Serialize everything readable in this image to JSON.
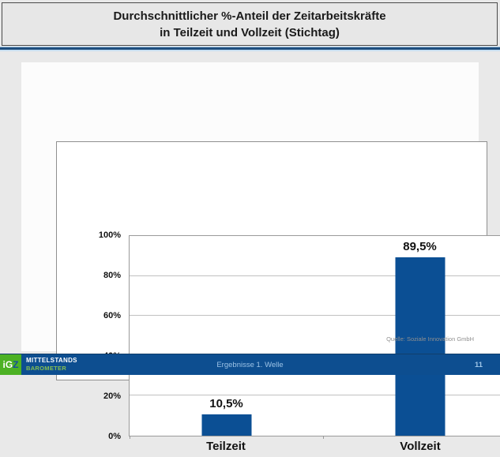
{
  "header": {
    "title_line1": "Durchschnittlicher %-Anteil der Zeitarbeitskräfte",
    "title_line2": "in Teilzeit und Vollzeit (Stichtag)"
  },
  "chart_data": {
    "type": "bar",
    "title": "Durchschnittlicher %-Anteil der Zeitarbeitskräfte in Teilzeit und Vollzeit (Stichtag)",
    "categories": [
      "Teilzeit",
      "Vollzeit"
    ],
    "values": [
      10.5,
      89.5
    ],
    "value_labels": [
      "10,5%",
      "89,5%"
    ],
    "y_ticks": [
      "0%",
      "20%",
      "40%",
      "60%",
      "80%",
      "100%"
    ],
    "ylim": [
      0,
      100
    ],
    "xlabel": "",
    "ylabel": "",
    "grid": "horizontal",
    "legend": "none",
    "bar_color": "#0B4F94"
  },
  "source_note": "Quelle: Soziale Innovation GmbH",
  "footer": {
    "background": "#0D4E90",
    "logo": {
      "background": "#4CB124",
      "text_ig": "iG",
      "text_z": "Z",
      "line1": "MITTELSTANDS",
      "line2": "BAROMETER"
    },
    "center_text": "Ergebnisse 1. Welle",
    "page_number": "11"
  }
}
